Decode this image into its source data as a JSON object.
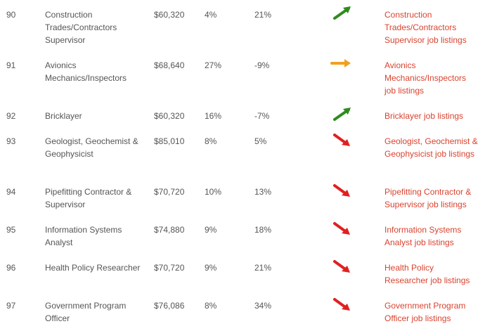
{
  "table": {
    "rows": [
      {
        "rank": "90",
        "title": "Construction Trades/Contractors Supervisor",
        "salary": "$60,320",
        "growth": "4%",
        "change": "21%",
        "trend": "up",
        "listing": "Construction Trades/Contractors Supervisor job listings"
      },
      {
        "rank": "91",
        "title": "Avionics Mechanics/Inspectors",
        "salary": "$68,640",
        "growth": "27%",
        "change": "-9%",
        "trend": "flat",
        "listing": "Avionics Mechanics/Inspectors job listings"
      },
      {
        "rank": "92",
        "title": "Bricklayer",
        "salary": "$60,320",
        "growth": "16%",
        "change": "-7%",
        "trend": "up",
        "listing": "Bricklayer job listings"
      },
      {
        "rank": "93",
        "title": "Geologist, Geochemist & Geophysicist",
        "salary": "$85,010",
        "growth": "8%",
        "change": "5%",
        "trend": "down",
        "listing": "Geologist, Geochemist & Geophysicist job listings"
      },
      {
        "rank": "94",
        "title": "Pipefitting Contractor & Supervisor",
        "salary": "$70,720",
        "growth": "10%",
        "change": "13%",
        "trend": "down",
        "listing": "Pipefitting Contractor & Supervisor job listings"
      },
      {
        "rank": "95",
        "title": "Information Systems Analyst",
        "salary": "$74,880",
        "growth": "9%",
        "change": "18%",
        "trend": "down",
        "listing": "Information Systems Analyst job listings"
      },
      {
        "rank": "96",
        "title": "Health Policy Researcher",
        "salary": "$70,720",
        "growth": "9%",
        "change": "21%",
        "trend": "down",
        "listing": "Health Policy Researcher job listings"
      },
      {
        "rank": "97",
        "title": "Government Program Officer",
        "salary": "$76,086",
        "growth": "8%",
        "change": "34%",
        "trend": "down",
        "listing": "Government Program Officer job listings"
      }
    ]
  },
  "trend_icons": {
    "up": {
      "icon": "arrow-up-right-icon",
      "color": "#2e8b1e"
    },
    "flat": {
      "icon": "arrow-right-icon",
      "color": "#f0a020"
    },
    "down": {
      "icon": "arrow-down-right-icon",
      "color": "#e02020"
    }
  },
  "colors": {
    "text": "#555555",
    "link": "#d9432f"
  }
}
